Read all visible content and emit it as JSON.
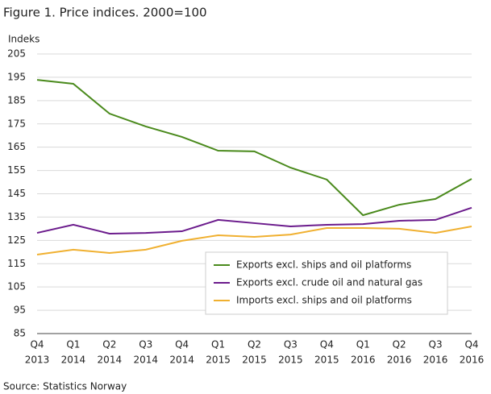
{
  "chart_data": {
    "type": "line",
    "title": "Figure 1. Price indices. 2000=100",
    "y_label": "Indeks",
    "source": "Source: Statistics Norway",
    "categories": [
      [
        "Q4",
        "2013"
      ],
      [
        "Q1",
        "2014"
      ],
      [
        "Q2",
        "2014"
      ],
      [
        "Q3",
        "2014"
      ],
      [
        "Q4",
        "2014"
      ],
      [
        "Q1",
        "2015"
      ],
      [
        "Q2",
        "2015"
      ],
      [
        "Q3",
        "2015"
      ],
      [
        "Q4",
        "2015"
      ],
      [
        "Q1",
        "2016"
      ],
      [
        "Q2",
        "2016"
      ],
      [
        "Q3",
        "2016"
      ],
      [
        "Q4",
        "2016"
      ]
    ],
    "series": [
      {
        "name": "Exports excl. ships and oil platforms",
        "color": "#4a8a1c",
        "values": [
          193.9,
          192.2,
          179.4,
          173.9,
          169.4,
          163.5,
          163.2,
          156.2,
          151.1,
          135.8,
          140.3,
          142.8,
          151.4
        ]
      },
      {
        "name": "Exports excl. crude oil and natural gas",
        "color": "#6b1b8c",
        "values": [
          128.2,
          131.7,
          127.9,
          128.2,
          128.9,
          133.8,
          132.4,
          131.0,
          131.7,
          132.0,
          133.4,
          133.8,
          139.0
        ]
      },
      {
        "name": "Imports excl. ships and oil platforms",
        "color": "#f0b030",
        "values": [
          118.9,
          121.0,
          119.6,
          121.0,
          124.8,
          127.2,
          126.5,
          127.5,
          130.3,
          130.3,
          130.0,
          128.2,
          131.0
        ]
      }
    ],
    "ylim": [
      85,
      205
    ],
    "yticks": [
      85,
      95,
      105,
      115,
      125,
      135,
      145,
      155,
      165,
      175,
      185,
      195,
      205
    ],
    "grid": true,
    "legend": "lower right"
  }
}
